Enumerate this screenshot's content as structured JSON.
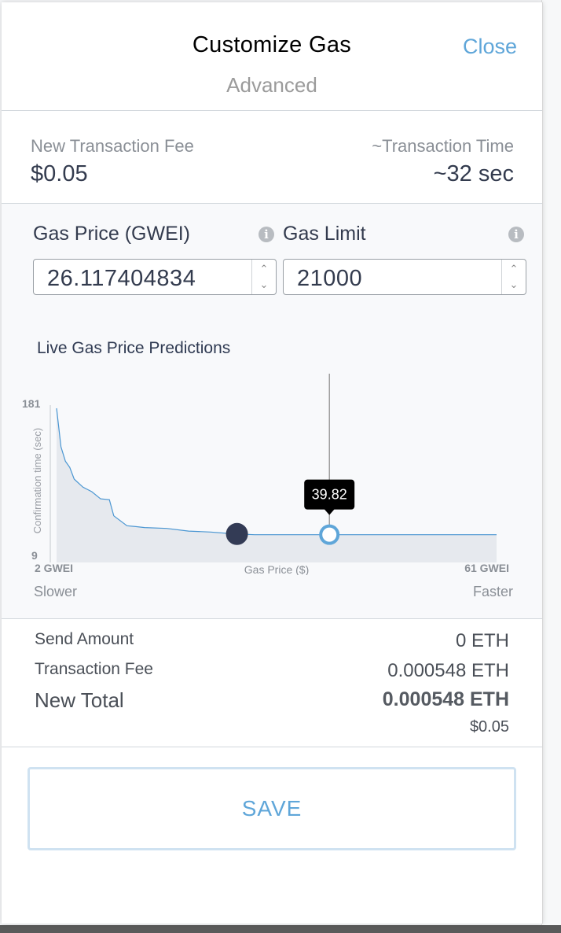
{
  "header": {
    "title": "Customize Gas",
    "subtitle": "Advanced",
    "close_label": "Close"
  },
  "fee": {
    "label": "New Transaction Fee",
    "value": "$0.05",
    "time_label": "~Transaction Time",
    "time_value": "~32 sec"
  },
  "gas_price": {
    "label": "Gas Price (GWEI)",
    "value": "26.117404834",
    "info_icon": "info-icon"
  },
  "gas_limit": {
    "label": "Gas Limit",
    "value": "21000",
    "info_icon": "info-icon"
  },
  "chart_section": {
    "title": "Live Gas Price Predictions",
    "slower_label": "Slower",
    "faster_label": "Faster"
  },
  "chart_data": {
    "type": "area",
    "ylabel": "Confirmation time (sec)",
    "xlabel": "Gas Price ($)",
    "x_min_label": "2 GWEI",
    "x_max_label": "61 GWEI",
    "ylim": [
      9,
      181
    ],
    "y_tick_labels": [
      "181",
      "9"
    ],
    "x": [
      0.0,
      0.01,
      0.02,
      0.03,
      0.04,
      0.06,
      0.08,
      0.1,
      0.12,
      0.13,
      0.16,
      0.18,
      0.2,
      0.25,
      0.3,
      0.35,
      0.4,
      0.45,
      0.5,
      0.6,
      0.7,
      0.8,
      0.9,
      1.0
    ],
    "y": [
      181,
      138,
      122,
      115,
      102,
      93,
      88,
      80,
      79,
      61,
      50,
      49,
      48,
      47,
      44,
      43,
      41,
      40,
      40,
      40,
      40,
      40,
      40,
      40
    ],
    "current_marker_x": 0.41,
    "hover_marker_x": 0.62,
    "hover_label": "39.82",
    "fill_color": "#e6e9ee",
    "line_color": "#4a96d2",
    "current_color": "#333b55",
    "hover_color": "#5fa6d9"
  },
  "summary": {
    "send_amount_label": "Send Amount",
    "send_amount_value": "0 ETH",
    "tx_fee_label": "Transaction Fee",
    "tx_fee_value": "0.000548 ETH",
    "total_label": "New Total",
    "total_value": "0.000548 ETH",
    "total_fiat": "$0.05"
  },
  "save_label": "SAVE",
  "colors": {
    "accent": "#5fa6d9",
    "text_dark": "#333b4e",
    "text_muted": "#8a8f96"
  }
}
